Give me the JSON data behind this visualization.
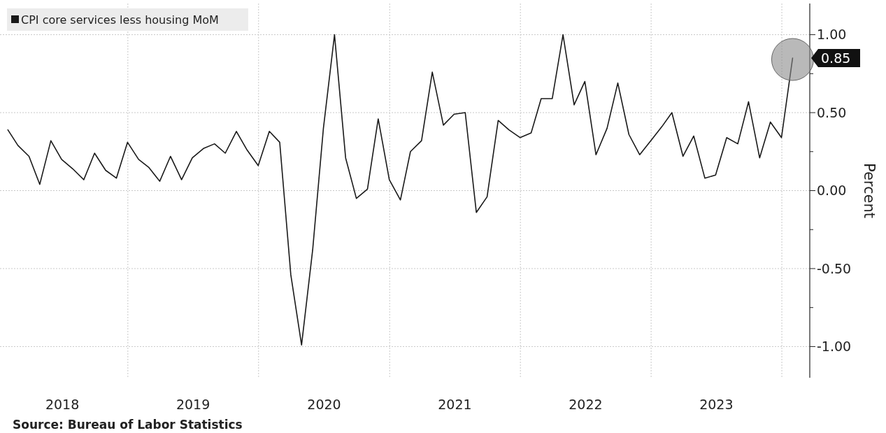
{
  "chart_data": {
    "type": "line",
    "ylabel": "Percent",
    "legend": "top left",
    "grid": true,
    "line_style": "solid",
    "marker": "none",
    "x": [
      "2018-01-31",
      "2018-02-28",
      "2018-03-31",
      "2018-04-30",
      "2018-05-31",
      "2018-06-30",
      "2018-07-31",
      "2018-08-31",
      "2018-09-30",
      "2018-10-31",
      "2018-11-30",
      "2018-12-31",
      "2019-01-31",
      "2019-02-28",
      "2019-03-31",
      "2019-04-30",
      "2019-05-31",
      "2019-06-30",
      "2019-07-31",
      "2019-08-31",
      "2019-09-30",
      "2019-10-31",
      "2019-11-30",
      "2019-12-31",
      "2020-01-31",
      "2020-02-29",
      "2020-03-31",
      "2020-04-30",
      "2020-05-31",
      "2020-06-30",
      "2020-07-31",
      "2020-08-31",
      "2020-09-30",
      "2020-10-31",
      "2020-11-30",
      "2020-12-31",
      "2021-01-31",
      "2021-02-28",
      "2021-03-31",
      "2021-04-30",
      "2021-05-31",
      "2021-06-30",
      "2021-07-31",
      "2021-08-31",
      "2021-09-30",
      "2021-10-31",
      "2021-11-30",
      "2021-12-31",
      "2022-01-31",
      "2022-02-28",
      "2022-03-31",
      "2022-04-30",
      "2022-05-31",
      "2022-06-30",
      "2022-07-31",
      "2022-08-31",
      "2022-09-30",
      "2022-10-31",
      "2022-11-30",
      "2022-12-31",
      "2023-01-31",
      "2023-02-28",
      "2023-03-31",
      "2023-04-30",
      "2023-05-31",
      "2023-06-30",
      "2023-07-31",
      "2023-08-31",
      "2023-09-30",
      "2023-10-31",
      "2023-11-30",
      "2023-12-31",
      "2024-01-31"
    ],
    "series": [
      {
        "name": "CPI core services less housing MoM",
        "color": "#1a1a1a",
        "values": [
          0.39,
          0.29,
          0.22,
          0.04,
          0.32,
          0.2,
          0.14,
          0.07,
          0.24,
          0.13,
          0.08,
          0.31,
          0.2,
          0.15,
          0.06,
          0.22,
          0.07,
          0.21,
          0.27,
          0.3,
          0.24,
          0.38,
          0.26,
          0.16,
          0.38,
          0.31,
          -0.54,
          -0.99,
          -0.38,
          0.4,
          1.0,
          0.21,
          -0.05,
          0.01,
          0.46,
          0.07,
          -0.06,
          0.25,
          0.32,
          0.76,
          0.42,
          0.49,
          0.5,
          -0.14,
          -0.04,
          0.45,
          0.39,
          0.34,
          0.37,
          0.59,
          0.59,
          1.0,
          0.55,
          0.7,
          0.23,
          0.4,
          0.69,
          0.36,
          0.23,
          0.32,
          0.41,
          0.5,
          0.22,
          0.35,
          0.08,
          0.1,
          0.34,
          0.3,
          0.57,
          0.21,
          0.44,
          0.34,
          0.85
        ]
      }
    ],
    "xlim": [
      "2018-01-09",
      "2024-03-19"
    ],
    "xticks": [
      {
        "value": "2018-07-02",
        "label": "2018"
      },
      {
        "value": "2019-01-01",
        "label": null
      },
      {
        "value": "2019-07-02",
        "label": "2019"
      },
      {
        "value": "2020-01-01",
        "label": null
      },
      {
        "value": "2020-07-02",
        "label": "2020"
      },
      {
        "value": "2021-01-01",
        "label": null
      },
      {
        "value": "2021-07-02",
        "label": "2021"
      },
      {
        "value": "2022-01-01",
        "label": null
      },
      {
        "value": "2022-07-02",
        "label": "2022"
      },
      {
        "value": "2023-01-01",
        "label": null
      },
      {
        "value": "2023-07-02",
        "label": "2023"
      },
      {
        "value": "2024-01-01",
        "label": null
      }
    ],
    "ylim": [
      -1.2,
      1.2
    ],
    "yticks": [
      {
        "value": 1,
        "label": "1.00"
      },
      {
        "value": 0.75,
        "label": null
      },
      {
        "value": 0.5,
        "label": "0.50"
      },
      {
        "value": 0.25,
        "label": null
      },
      {
        "value": 0,
        "label": "0.00"
      },
      {
        "value": -0.25,
        "label": null
      },
      {
        "value": -0.5,
        "label": "-0.50"
      },
      {
        "value": -0.75,
        "label": null
      },
      {
        "value": -1,
        "label": "-1.00"
      }
    ],
    "annotations": [
      {
        "text": "0.85",
        "x": "2024-01-31",
        "y": 0.85
      },
      "Source: Bureau of Labor Statistics"
    ]
  }
}
